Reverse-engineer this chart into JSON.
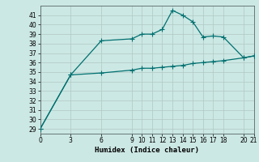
{
  "xlabel": "Humidex (Indice chaleur)",
  "background_color": "#cce8e4",
  "grid_color": "#b0c8c4",
  "line_color": "#007070",
  "line1_x": [
    0,
    3,
    6,
    9,
    10,
    11,
    12,
    13,
    14,
    15,
    16,
    17,
    18,
    20,
    21
  ],
  "line1_y": [
    29,
    34.7,
    38.3,
    38.5,
    39.0,
    39.0,
    39.5,
    41.5,
    41.0,
    40.3,
    38.7,
    38.8,
    38.7,
    36.5,
    36.7
  ],
  "line2_x": [
    0,
    3,
    6,
    9,
    10,
    11,
    12,
    13,
    14,
    15,
    16,
    17,
    18,
    20,
    21
  ],
  "line2_y": [
    29,
    34.7,
    34.9,
    35.2,
    35.4,
    35.4,
    35.5,
    35.6,
    35.7,
    35.9,
    36.0,
    36.1,
    36.2,
    36.5,
    36.7
  ],
  "ylim": [
    28.5,
    42
  ],
  "xlim": [
    0,
    21
  ],
  "xticks": [
    0,
    3,
    6,
    9,
    10,
    11,
    12,
    13,
    14,
    15,
    16,
    17,
    18,
    20,
    21
  ],
  "yticks": [
    29,
    30,
    31,
    32,
    33,
    34,
    35,
    36,
    37,
    38,
    39,
    40,
    41
  ],
  "marker": "+",
  "markersize": 4,
  "linewidth": 0.9
}
